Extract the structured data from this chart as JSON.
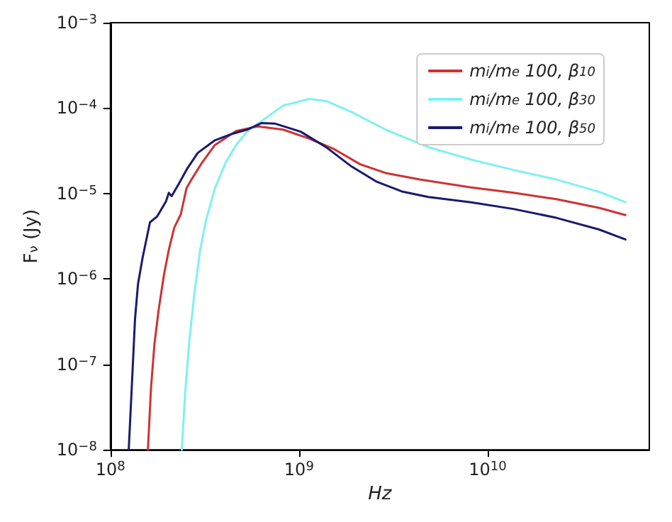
{
  "chart_data": {
    "type": "line",
    "xlabel": "Hz",
    "ylabel": "F$_{ν}$ (Jy)",
    "log": "xy",
    "xlim": [
      100000000.0,
      72000000000.0
    ],
    "ylim": [
      1e-08,
      0.001
    ],
    "xticks": [
      {
        "value": 100000000.0,
        "label": "10$^{8}$"
      },
      {
        "value": 1000000000.0,
        "label": "10$^{9}$"
      },
      {
        "value": 10000000000.0,
        "label": "10$^{10}$"
      }
    ],
    "yticks": [
      {
        "value": 1e-08,
        "label": "10$^{−8}$"
      },
      {
        "value": 1e-07,
        "label": "10$^{−7}$"
      },
      {
        "value": 1e-06,
        "label": "10$^{−6}$"
      },
      {
        "value": 1e-05,
        "label": "10$^{−5}$"
      },
      {
        "value": 0.0001,
        "label": "10$^{−4}$"
      },
      {
        "value": 0.001,
        "label": "10$^{−3}$"
      }
    ],
    "grid": false,
    "legend": "top right",
    "marker": "none",
    "line_style": "solid",
    "series": [
      {
        "name": "m$_{i}$/m$_{e}$ 100, β$_{10}$",
        "color": "#cc3333",
        "x": [
          158000000.0,
          164000000.0,
          171000000.0,
          180000000.0,
          192000000.0,
          204000000.0,
          218000000.0,
          236000000.0,
          253000000.0,
          269000000.0,
          306000000.0,
          358000000.0,
          464000000.0,
          603000000.0,
          824000000.0,
          1130000000.0,
          1540000000.0,
          2110000000.0,
          2880000000.0,
          4360000000.0,
          8170000000.0,
          13700000000.0,
          23100000000.0,
          38900000000.0,
          53800000000.0
        ],
        "values": [
          1e-08,
          5.2e-08,
          1.7e-07,
          4.3e-07,
          1.1e-06,
          2.2e-06,
          4e-06,
          5.7e-06,
          1.15e-05,
          1.46e-05,
          2.3e-05,
          3.7e-05,
          5.4e-05,
          6.1e-05,
          5.6e-05,
          4.4e-05,
          3.3e-05,
          2.2e-05,
          1.74e-05,
          1.46e-05,
          1.18e-05,
          1.02e-05,
          8.6e-06,
          6.8e-06,
          5.6e-06
        ]
      },
      {
        "name": "m$_{i}$/m$_{e}$ 100, β$_{30}$",
        "color": "#7ff0f0",
        "x": [
          239000000.0,
          249000000.0,
          262000000.0,
          279000000.0,
          299000000.0,
          323000000.0,
          358000000.0,
          408000000.0,
          464000000.0,
          530000000.0,
          635000000.0,
          824000000.0,
          1130000000.0,
          1390000000.0,
          1900000000.0,
          2880000000.0,
          4850000000.0,
          8170000000.0,
          13700000000.0,
          23100000000.0,
          38900000000.0,
          53800000000.0
        ],
        "values": [
          1e-08,
          4.6e-08,
          1.9e-07,
          6.9e-07,
          2.2e-06,
          5.1e-06,
          1.15e-05,
          2.3e-05,
          3.7e-05,
          5.3e-05,
          7.1e-05,
          0.000107,
          0.000128,
          0.000121,
          9e-05,
          5.6e-05,
          3.5e-05,
          2.5e-05,
          1.89e-05,
          1.46e-05,
          1.05e-05,
          7.9e-06
        ]
      },
      {
        "name": "m$_{i}$/m$_{e}$ 100, β$_{50}$",
        "color": "#1a1a6e",
        "x": [
          125000000.0,
          130000000.0,
          135000000.0,
          140000000.0,
          148000000.0,
          162000000.0,
          177000000.0,
          197000000.0,
          204000000.0,
          211000000.0,
          230000000.0,
          255000000.0,
          291000000.0,
          358000000.0,
          442000000.0,
          530000000.0,
          635000000.0,
          743000000.0,
          1020000000.0,
          1390000000.0,
          1900000000.0,
          2590000000.0,
          3550000000.0,
          4850000000.0,
          8170000000.0,
          13700000000.0,
          23100000000.0,
          38900000000.0,
          53800000000.0
        ],
        "values": [
          1e-08,
          5.9e-08,
          3.4e-07,
          8.7e-07,
          1.76e-06,
          4.6e-06,
          5.4e-06,
          8.1e-06,
          1.02e-05,
          9.3e-06,
          1.29e-05,
          1.95e-05,
          3e-05,
          4.2e-05,
          5e-05,
          5.6e-05,
          6.7e-05,
          6.6e-05,
          5.3e-05,
          3.5e-05,
          2.07e-05,
          1.37e-05,
          1.05e-05,
          9.1e-06,
          7.9e-06,
          6.6e-06,
          5.2e-06,
          3.8e-06,
          2.9e-06
        ]
      }
    ]
  }
}
